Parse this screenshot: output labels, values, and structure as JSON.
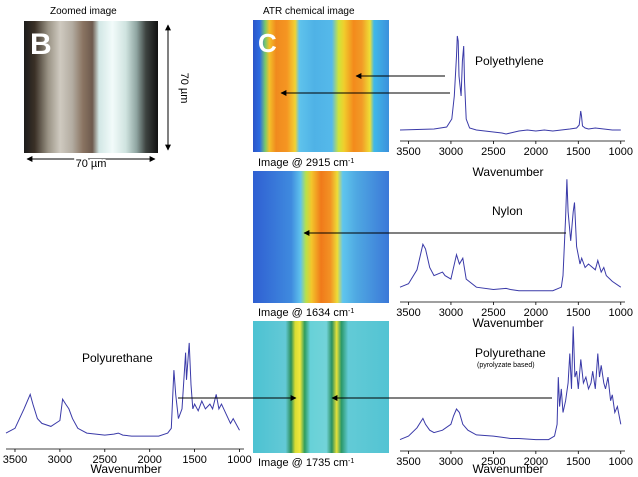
{
  "zoomed": {
    "title": "Zoomed image",
    "panel_letter": "B",
    "width_label": "70 µm",
    "height_label": "70 µm"
  },
  "atr": {
    "title": "ATR chemical image",
    "panel_letter": "C",
    "images": [
      {
        "caption_base": "Image @ 2915 cm",
        "caption_sup": "-1"
      },
      {
        "caption_base": "Image @ 1634 cm",
        "caption_sup": "-1"
      },
      {
        "caption_base": "Image @ 1735 cm",
        "caption_sup": "-1"
      }
    ]
  },
  "chart_data": [
    {
      "type": "line",
      "title": "Polyethylene",
      "xlabel": "Wavenumber",
      "ylabel": "",
      "xlim": [
        3600,
        950
      ],
      "xticks": [
        3500,
        3000,
        2500,
        2000,
        1500,
        1000
      ],
      "series": [
        {
          "x": [
            3600,
            3200,
            3050,
            2990,
            2960,
            2935,
            2925,
            2915,
            2905,
            2880,
            2865,
            2850,
            2840,
            2820,
            2780,
            2700,
            2600,
            2500,
            2400,
            2350,
            2300,
            2200,
            2100,
            2000,
            1900,
            1800,
            1700,
            1600,
            1520,
            1490,
            1472,
            1462,
            1450,
            1420,
            1380,
            1300,
            1200,
            1100,
            1000
          ],
          "y": [
            0.01,
            0.02,
            0.04,
            0.12,
            0.35,
            0.75,
            0.95,
            0.9,
            0.55,
            0.35,
            0.7,
            0.85,
            0.5,
            0.12,
            0.03,
            0.01,
            0.0,
            -0.01,
            -0.02,
            -0.03,
            -0.02,
            0.0,
            0.01,
            0.0,
            0.01,
            0.0,
            0.01,
            0.02,
            0.03,
            0.06,
            0.2,
            0.15,
            0.05,
            0.03,
            0.02,
            0.03,
            0.02,
            0.01,
            0.01
          ]
        }
      ]
    },
    {
      "type": "line",
      "title": "Nylon",
      "xlabel": "Wavenumber",
      "ylabel": "",
      "xlim": [
        3600,
        950
      ],
      "xticks": [
        3500,
        3000,
        2500,
        2000,
        1500,
        1000
      ],
      "series": [
        {
          "x": [
            3600,
            3500,
            3400,
            3330,
            3300,
            3250,
            3200,
            3100,
            3070,
            3000,
            2935,
            2900,
            2860,
            2820,
            2700,
            2500,
            2350,
            2300,
            2200,
            2000,
            1800,
            1700,
            1680,
            1650,
            1634,
            1620,
            1590,
            1560,
            1545,
            1520,
            1480,
            1460,
            1420,
            1380,
            1300,
            1270,
            1230,
            1200,
            1170,
            1100,
            1000
          ],
          "y": [
            0.05,
            0.08,
            0.2,
            0.42,
            0.38,
            0.22,
            0.15,
            0.18,
            0.15,
            0.12,
            0.33,
            0.25,
            0.3,
            0.12,
            0.05,
            0.03,
            0.04,
            0.03,
            0.02,
            0.02,
            0.02,
            0.05,
            0.15,
            0.65,
            0.98,
            0.7,
            0.45,
            0.7,
            0.78,
            0.4,
            0.25,
            0.3,
            0.22,
            0.25,
            0.2,
            0.28,
            0.18,
            0.22,
            0.15,
            0.1,
            0.05
          ]
        }
      ]
    },
    {
      "type": "line",
      "title": "Polyurethane",
      "xlabel": "Wavenumber",
      "ylabel": "",
      "xlim": [
        3600,
        950
      ],
      "xticks": [
        3500,
        3000,
        2500,
        2000,
        1500,
        1000
      ],
      "series": [
        {
          "x": [
            3600,
            3500,
            3400,
            3330,
            3300,
            3250,
            3200,
            3100,
            3000,
            2970,
            2935,
            2900,
            2860,
            2800,
            2700,
            2500,
            2400,
            2350,
            2300,
            2200,
            2000,
            1900,
            1800,
            1760,
            1730,
            1710,
            1680,
            1640,
            1600,
            1590,
            1560,
            1540,
            1520,
            1500,
            1460,
            1420,
            1380,
            1330,
            1300,
            1260,
            1230,
            1200,
            1150,
            1100,
            1070,
            1000
          ],
          "y": [
            0.05,
            0.1,
            0.3,
            0.45,
            0.35,
            0.2,
            0.15,
            0.12,
            0.18,
            0.4,
            0.35,
            0.3,
            0.2,
            0.1,
            0.05,
            0.03,
            0.04,
            0.05,
            0.03,
            0.02,
            0.02,
            0.02,
            0.05,
            0.1,
            0.7,
            0.45,
            0.2,
            0.3,
            0.88,
            0.6,
            0.98,
            0.55,
            0.3,
            0.35,
            0.28,
            0.38,
            0.3,
            0.35,
            0.3,
            0.45,
            0.3,
            0.35,
            0.25,
            0.15,
            0.2,
            0.08
          ]
        }
      ]
    },
    {
      "type": "line",
      "title": "Polyurethane",
      "subtitle": "(pyrolyzate based)",
      "xlabel": "Wavenumber",
      "ylabel": "",
      "xlim": [
        3600,
        950
      ],
      "xticks": [
        3500,
        3000,
        2500,
        2000,
        1500,
        1000
      ],
      "series": [
        {
          "x": [
            3600,
            3500,
            3400,
            3330,
            3300,
            3250,
            3200,
            3100,
            3000,
            2970,
            2935,
            2900,
            2860,
            2800,
            2700,
            2500,
            2400,
            2300,
            2200,
            2000,
            1850,
            1780,
            1750,
            1735,
            1720,
            1700,
            1680,
            1650,
            1620,
            1600,
            1580,
            1560,
            1540,
            1520,
            1500,
            1470,
            1440,
            1410,
            1380,
            1350,
            1330,
            1300,
            1270,
            1250,
            1230,
            1200,
            1180,
            1150,
            1120,
            1100,
            1070,
            1040,
            1000
          ],
          "y": [
            0.02,
            0.05,
            0.12,
            0.2,
            0.15,
            0.1,
            0.08,
            0.1,
            0.15,
            0.22,
            0.28,
            0.25,
            0.15,
            0.1,
            0.06,
            0.05,
            0.04,
            0.03,
            0.03,
            0.02,
            0.02,
            0.05,
            0.15,
            0.55,
            0.3,
            0.45,
            0.25,
            0.35,
            0.5,
            0.75,
            0.45,
            0.98,
            0.55,
            0.6,
            0.45,
            0.7,
            0.5,
            0.55,
            0.45,
            0.5,
            0.6,
            0.45,
            0.75,
            0.55,
            0.65,
            0.5,
            0.45,
            0.55,
            0.35,
            0.4,
            0.25,
            0.3,
            0.15
          ]
        }
      ]
    }
  ]
}
